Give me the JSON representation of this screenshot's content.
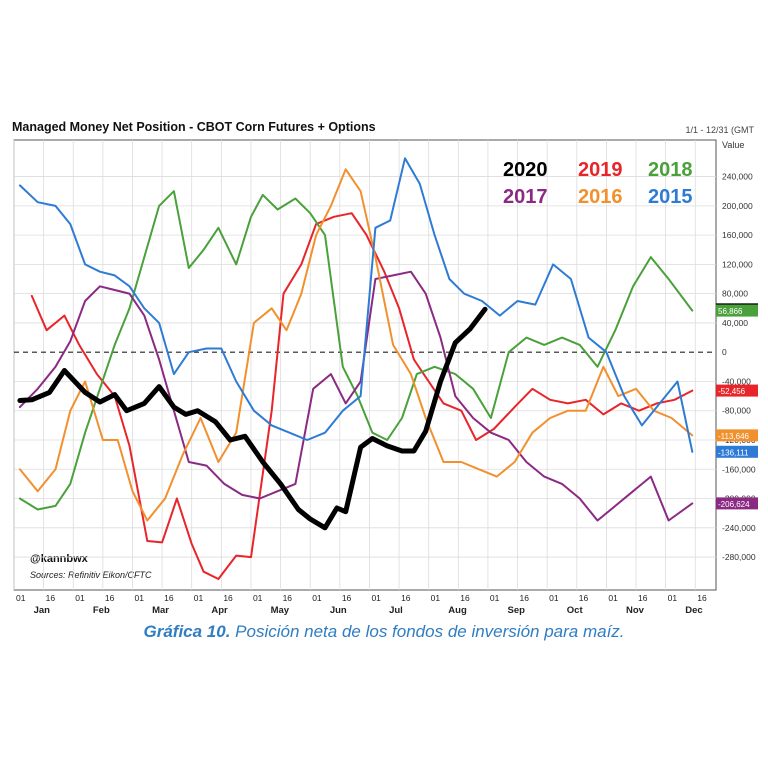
{
  "caption": {
    "label": "Gráfica 10.",
    "text": "Posición neta de los fondos de inversión para maíz."
  },
  "chart_data": {
    "type": "line",
    "title": "Managed Money Net Position - CBOT Corn Futures + Options",
    "date_range": "1/1 - 12/31 (GMT",
    "ylabel": "Value",
    "handle": "@kannbwx",
    "sources": "Sources: Refinitiv Eikon/CFTC",
    "ylim": [
      -325000,
      290000
    ],
    "y_ticks": [
      240000,
      200000,
      160000,
      120000,
      80000,
      40000,
      0,
      -40000,
      -80000,
      -120000,
      -160000,
      -200000,
      -240000,
      -280000
    ],
    "y_tick_labels": [
      "240,000",
      "200,000",
      "160,000",
      "120,000",
      "80,000",
      "40,000",
      "0",
      "-40,000",
      "-80,000",
      "-120,000",
      "-160,000",
      "-200,000",
      "-240,000",
      "-280,000"
    ],
    "x_tick_top_labels": [
      "01",
      "16",
      "01",
      "16",
      "01",
      "16",
      "01",
      "16",
      "01",
      "16",
      "01",
      "16",
      "01",
      "16",
      "01",
      "16",
      "01",
      "16",
      "01",
      "16",
      "01",
      "16",
      "01",
      "16"
    ],
    "months": [
      "Jan",
      "Feb",
      "Mar",
      "Apr",
      "May",
      "Jun",
      "Jul",
      "Aug",
      "Sep",
      "Oct",
      "Nov",
      "Dec"
    ],
    "zero_line": "dashed",
    "grid": true,
    "legend_placement": "top-right",
    "series": [
      {
        "name": "2020",
        "color": "#000000",
        "end_label": "58,556",
        "bold": true,
        "points": [
          [
            0.1,
            -66000
          ],
          [
            0.3,
            -65000
          ],
          [
            0.6,
            -55000
          ],
          [
            0.85,
            -25000
          ],
          [
            1.2,
            -55000
          ],
          [
            1.45,
            -68000
          ],
          [
            1.7,
            -58000
          ],
          [
            1.9,
            -80000
          ],
          [
            2.2,
            -70000
          ],
          [
            2.45,
            -47000
          ],
          [
            2.7,
            -75000
          ],
          [
            2.9,
            -85000
          ],
          [
            3.1,
            -80000
          ],
          [
            3.4,
            -95000
          ],
          [
            3.65,
            -120000
          ],
          [
            3.9,
            -115000
          ],
          [
            4.2,
            -150000
          ],
          [
            4.5,
            -180000
          ],
          [
            4.8,
            -215000
          ],
          [
            5.0,
            -228000
          ],
          [
            5.25,
            -240000
          ],
          [
            5.45,
            -213000
          ],
          [
            5.6,
            -218000
          ],
          [
            5.85,
            -130000
          ],
          [
            6.05,
            -118000
          ],
          [
            6.3,
            -128000
          ],
          [
            6.55,
            -135000
          ],
          [
            6.75,
            -135000
          ],
          [
            6.95,
            -108000
          ],
          [
            7.2,
            -40000
          ],
          [
            7.45,
            13000
          ],
          [
            7.7,
            32000
          ],
          [
            7.95,
            58556
          ]
        ]
      },
      {
        "name": "2019",
        "color": "#e8252a",
        "end_label": "-52,456",
        "points": [
          [
            0.3,
            77000
          ],
          [
            0.55,
            30000
          ],
          [
            0.85,
            50000
          ],
          [
            1.1,
            10000
          ],
          [
            1.4,
            -30000
          ],
          [
            1.7,
            -60000
          ],
          [
            1.95,
            -128000
          ],
          [
            2.25,
            -258000
          ],
          [
            2.5,
            -260000
          ],
          [
            2.75,
            -200000
          ],
          [
            3.0,
            -262000
          ],
          [
            3.2,
            -300000
          ],
          [
            3.45,
            -310000
          ],
          [
            3.75,
            -278000
          ],
          [
            4.0,
            -280000
          ],
          [
            4.35,
            -80000
          ],
          [
            4.55,
            80000
          ],
          [
            4.85,
            120000
          ],
          [
            5.1,
            175000
          ],
          [
            5.4,
            185000
          ],
          [
            5.7,
            190000
          ],
          [
            5.95,
            160000
          ],
          [
            6.25,
            110000
          ],
          [
            6.5,
            60000
          ],
          [
            6.75,
            -10000
          ],
          [
            7.0,
            -40000
          ],
          [
            7.25,
            -70000
          ],
          [
            7.55,
            -80000
          ],
          [
            7.8,
            -120000
          ],
          [
            8.1,
            -105000
          ],
          [
            8.45,
            -75000
          ],
          [
            8.75,
            -50000
          ],
          [
            9.05,
            -65000
          ],
          [
            9.35,
            -70000
          ],
          [
            9.65,
            -65000
          ],
          [
            9.95,
            -85000
          ],
          [
            10.25,
            -70000
          ],
          [
            10.55,
            -80000
          ],
          [
            10.85,
            -70000
          ],
          [
            11.15,
            -65000
          ],
          [
            11.45,
            -52456
          ]
        ]
      },
      {
        "name": "2018",
        "color": "#4aa13b",
        "end_label": "56,866",
        "points": [
          [
            0.1,
            -200000
          ],
          [
            0.4,
            -215000
          ],
          [
            0.7,
            -210000
          ],
          [
            0.95,
            -180000
          ],
          [
            1.2,
            -110000
          ],
          [
            1.45,
            -50000
          ],
          [
            1.7,
            10000
          ],
          [
            1.95,
            60000
          ],
          [
            2.2,
            130000
          ],
          [
            2.45,
            200000
          ],
          [
            2.7,
            220000
          ],
          [
            2.95,
            115000
          ],
          [
            3.2,
            140000
          ],
          [
            3.45,
            170000
          ],
          [
            3.75,
            120000
          ],
          [
            4.0,
            185000
          ],
          [
            4.2,
            215000
          ],
          [
            4.45,
            195000
          ],
          [
            4.75,
            210000
          ],
          [
            5.0,
            190000
          ],
          [
            5.25,
            160000
          ],
          [
            5.55,
            -20000
          ],
          [
            5.8,
            -60000
          ],
          [
            6.05,
            -110000
          ],
          [
            6.3,
            -120000
          ],
          [
            6.55,
            -90000
          ],
          [
            6.8,
            -30000
          ],
          [
            7.1,
            -20000
          ],
          [
            7.45,
            -30000
          ],
          [
            7.75,
            -50000
          ],
          [
            8.05,
            -90000
          ],
          [
            8.35,
            0
          ],
          [
            8.65,
            20000
          ],
          [
            8.95,
            10000
          ],
          [
            9.25,
            20000
          ],
          [
            9.55,
            10000
          ],
          [
            9.85,
            -20000
          ],
          [
            10.15,
            30000
          ],
          [
            10.45,
            90000
          ],
          [
            10.75,
            130000
          ],
          [
            11.05,
            100000
          ],
          [
            11.45,
            56866
          ]
        ]
      },
      {
        "name": "2017",
        "color": "#8b2a82",
        "end_label": "-206,624",
        "points": [
          [
            0.1,
            -75000
          ],
          [
            0.4,
            -50000
          ],
          [
            0.7,
            -20000
          ],
          [
            0.95,
            15000
          ],
          [
            1.2,
            70000
          ],
          [
            1.45,
            90000
          ],
          [
            1.7,
            85000
          ],
          [
            1.95,
            80000
          ],
          [
            2.2,
            50000
          ],
          [
            2.45,
            -10000
          ],
          [
            2.7,
            -80000
          ],
          [
            2.95,
            -150000
          ],
          [
            3.25,
            -155000
          ],
          [
            3.55,
            -180000
          ],
          [
            3.85,
            -195000
          ],
          [
            4.15,
            -200000
          ],
          [
            4.45,
            -190000
          ],
          [
            4.75,
            -180000
          ],
          [
            5.05,
            -50000
          ],
          [
            5.35,
            -30000
          ],
          [
            5.6,
            -70000
          ],
          [
            5.85,
            -40000
          ],
          [
            6.1,
            100000
          ],
          [
            6.4,
            105000
          ],
          [
            6.7,
            110000
          ],
          [
            6.95,
            80000
          ],
          [
            7.2,
            20000
          ],
          [
            7.45,
            -60000
          ],
          [
            7.75,
            -90000
          ],
          [
            8.05,
            -110000
          ],
          [
            8.35,
            -120000
          ],
          [
            8.65,
            -150000
          ],
          [
            8.95,
            -170000
          ],
          [
            9.25,
            -180000
          ],
          [
            9.55,
            -200000
          ],
          [
            9.85,
            -230000
          ],
          [
            10.15,
            -210000
          ],
          [
            10.45,
            -190000
          ],
          [
            10.75,
            -170000
          ],
          [
            11.05,
            -230000
          ],
          [
            11.45,
            -206624
          ]
        ]
      },
      {
        "name": "2016",
        "color": "#f2902e",
        "end_label": "-113,646",
        "points": [
          [
            0.1,
            -160000
          ],
          [
            0.4,
            -190000
          ],
          [
            0.7,
            -160000
          ],
          [
            0.95,
            -80000
          ],
          [
            1.2,
            -40000
          ],
          [
            1.5,
            -120000
          ],
          [
            1.75,
            -120000
          ],
          [
            2.0,
            -190000
          ],
          [
            2.25,
            -230000
          ],
          [
            2.55,
            -200000
          ],
          [
            2.85,
            -140000
          ],
          [
            3.15,
            -90000
          ],
          [
            3.45,
            -150000
          ],
          [
            3.75,
            -110000
          ],
          [
            4.05,
            40000
          ],
          [
            4.35,
            60000
          ],
          [
            4.6,
            30000
          ],
          [
            4.85,
            80000
          ],
          [
            5.1,
            160000
          ],
          [
            5.35,
            200000
          ],
          [
            5.6,
            250000
          ],
          [
            5.85,
            220000
          ],
          [
            6.1,
            130000
          ],
          [
            6.4,
            10000
          ],
          [
            6.7,
            -30000
          ],
          [
            6.95,
            -90000
          ],
          [
            7.25,
            -150000
          ],
          [
            7.55,
            -150000
          ],
          [
            7.85,
            -160000
          ],
          [
            8.15,
            -170000
          ],
          [
            8.45,
            -150000
          ],
          [
            8.75,
            -110000
          ],
          [
            9.05,
            -90000
          ],
          [
            9.35,
            -80000
          ],
          [
            9.65,
            -80000
          ],
          [
            9.95,
            -20000
          ],
          [
            10.2,
            -60000
          ],
          [
            10.5,
            -50000
          ],
          [
            10.8,
            -80000
          ],
          [
            11.1,
            -90000
          ],
          [
            11.45,
            -113646
          ]
        ]
      },
      {
        "name": "2015",
        "color": "#2e7bd6",
        "end_label": "-136,111",
        "points": [
          [
            0.1,
            228000
          ],
          [
            0.4,
            205000
          ],
          [
            0.7,
            200000
          ],
          [
            0.95,
            175000
          ],
          [
            1.2,
            120000
          ],
          [
            1.45,
            110000
          ],
          [
            1.7,
            105000
          ],
          [
            1.95,
            90000
          ],
          [
            2.2,
            60000
          ],
          [
            2.45,
            40000
          ],
          [
            2.7,
            -30000
          ],
          [
            2.95,
            0
          ],
          [
            3.25,
            5000
          ],
          [
            3.5,
            5000
          ],
          [
            3.75,
            -40000
          ],
          [
            4.05,
            -80000
          ],
          [
            4.35,
            -100000
          ],
          [
            4.65,
            -110000
          ],
          [
            4.95,
            -120000
          ],
          [
            5.25,
            -110000
          ],
          [
            5.55,
            -80000
          ],
          [
            5.85,
            -60000
          ],
          [
            6.1,
            170000
          ],
          [
            6.35,
            180000
          ],
          [
            6.6,
            265000
          ],
          [
            6.85,
            230000
          ],
          [
            7.1,
            160000
          ],
          [
            7.35,
            100000
          ],
          [
            7.6,
            80000
          ],
          [
            7.9,
            70000
          ],
          [
            8.2,
            50000
          ],
          [
            8.5,
            70000
          ],
          [
            8.8,
            65000
          ],
          [
            9.1,
            120000
          ],
          [
            9.4,
            100000
          ],
          [
            9.7,
            20000
          ],
          [
            10.0,
            0
          ],
          [
            10.3,
            -60000
          ],
          [
            10.6,
            -100000
          ],
          [
            10.9,
            -70000
          ],
          [
            11.2,
            -40000
          ],
          [
            11.45,
            -136111
          ]
        ]
      }
    ]
  }
}
